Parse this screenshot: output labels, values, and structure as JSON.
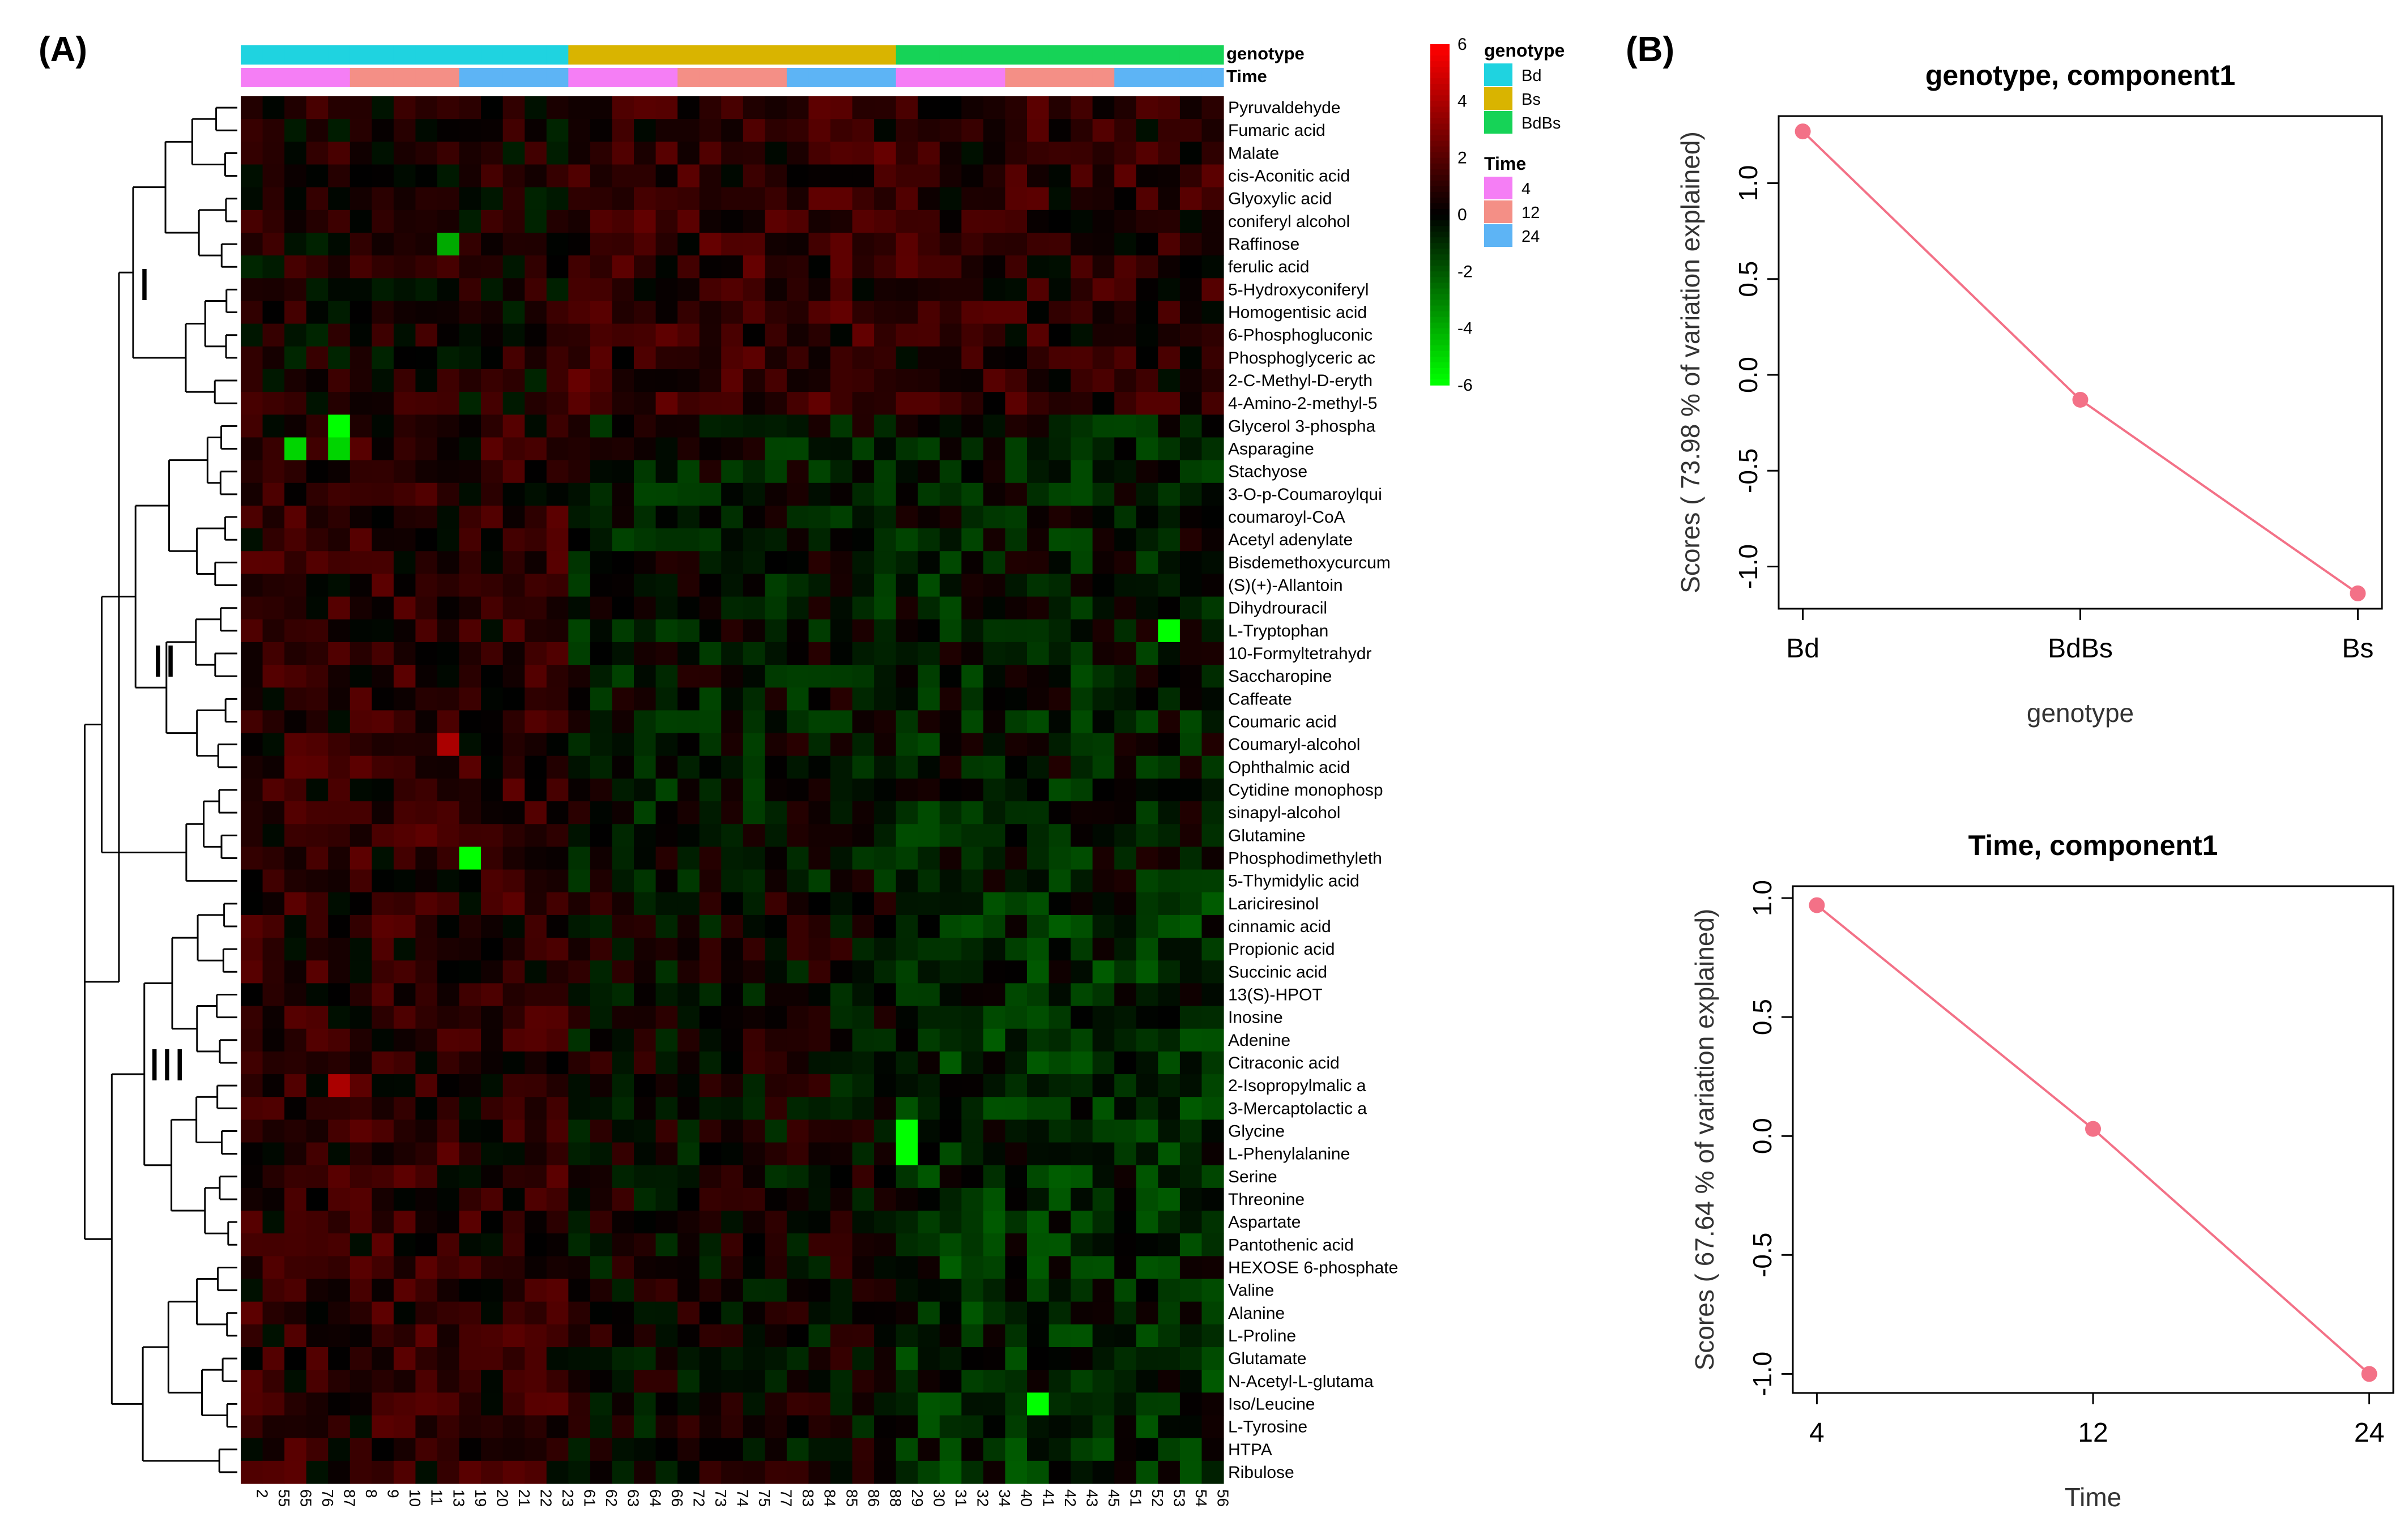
{
  "figure": {
    "panel_a_label": "(A)",
    "panel_b_label": "(B)"
  },
  "colors": {
    "heat_high": "#ff0000",
    "heat_mid": "#000000",
    "heat_low": "#00ff00",
    "genotype_Bd": "#1fd3e0",
    "genotype_Bs": "#d9b400",
    "genotype_BdBs": "#16d357",
    "time_4": "#f57ef5",
    "time_12": "#f48f86",
    "time_24": "#5db4f5",
    "line_color": "#f37187"
  },
  "chart_data": [
    {
      "type": "heatmap",
      "annotation_row_labels": [
        "genotype",
        "Time"
      ],
      "column_labels": [
        "2",
        "55",
        "65",
        "76",
        "87",
        "8",
        "9",
        "10",
        "11",
        "13",
        "19",
        "20",
        "21",
        "22",
        "23",
        "61",
        "62",
        "63",
        "64",
        "66",
        "72",
        "73",
        "74",
        "75",
        "77",
        "83",
        "84",
        "85",
        "86",
        "88",
        "29",
        "30",
        "31",
        "32",
        "34",
        "40",
        "41",
        "42",
        "43",
        "45",
        "51",
        "52",
        "53",
        "54",
        "56"
      ],
      "column_genotype": [
        "Bd",
        "Bd",
        "Bd",
        "Bd",
        "Bd",
        "Bd",
        "Bd",
        "Bd",
        "Bd",
        "Bd",
        "Bd",
        "Bd",
        "Bd",
        "Bd",
        "Bd",
        "Bs",
        "Bs",
        "Bs",
        "Bs",
        "Bs",
        "Bs",
        "Bs",
        "Bs",
        "Bs",
        "Bs",
        "Bs",
        "Bs",
        "Bs",
        "Bs",
        "Bs",
        "BdBs",
        "BdBs",
        "BdBs",
        "BdBs",
        "BdBs",
        "BdBs",
        "BdBs",
        "BdBs",
        "BdBs",
        "BdBs",
        "BdBs",
        "BdBs",
        "BdBs",
        "BdBs",
        "BdBs"
      ],
      "column_time": [
        "4",
        "4",
        "4",
        "4",
        "4",
        "12",
        "12",
        "12",
        "12",
        "12",
        "24",
        "24",
        "24",
        "24",
        "24",
        "4",
        "4",
        "4",
        "4",
        "4",
        "12",
        "12",
        "12",
        "12",
        "12",
        "24",
        "24",
        "24",
        "24",
        "24",
        "4",
        "4",
        "4",
        "4",
        "4",
        "12",
        "12",
        "12",
        "12",
        "12",
        "24",
        "24",
        "24",
        "24",
        "24"
      ],
      "row_labels": [
        "Pyruvaldehyde",
        "Fumaric acid",
        "Malate",
        "cis-Aconitic acid",
        "Glyoxylic acid",
        "coniferyl alcohol",
        "Raffinose",
        "ferulic acid",
        "5-Hydroxyconiferyl",
        "Homogentisic acid",
        "6-Phosphogluconic",
        "Phosphoglyceric ac",
        "2-C-Methyl-D-eryth",
        "4-Amino-2-methyl-5",
        "Glycerol 3-phospha",
        "Asparagine",
        "Stachyose",
        "3-O-p-Coumaroylqui",
        "coumaroyl-CoA",
        "Acetyl adenylate",
        "Bisdemethoxycurcum",
        "(S)(+)-Allantoin",
        "Dihydrouracil",
        "L-Tryptophan",
        "10-Formyltetrahydr",
        "Saccharopine",
        "Caffeate",
        "Coumaric acid",
        "Coumaryl-alcohol",
        "Ophthalmic acid",
        "Cytidine monophosp",
        "sinapyl-alcohol",
        "Glutamine",
        "Phosphodimethyleth",
        "5-Thymidylic acid",
        "Lariciresinol",
        "cinnamic acid",
        "Propionic acid",
        "Succinic acid",
        "13(S)-HPOT",
        "Inosine",
        "Adenine",
        "Citraconic acid",
        "2-Isopropylmalic a",
        "3-Mercaptolactic a",
        "Glycine",
        "L-Phenylalanine",
        "Serine",
        "Threonine",
        "Aspartate",
        "Pantothenic acid",
        "HEXOSE 6-phosphate",
        "Valine",
        "Alanine",
        "L-Proline",
        "Glutamate",
        "N-Acetyl-L-glutama",
        "Iso/Leucine",
        "L-Tyrosine",
        "HTPA",
        "Ribulose"
      ],
      "cluster_labels": [
        "I",
        "II",
        "III"
      ],
      "value_range": [
        -6,
        6
      ],
      "colorbar_ticks": [
        "6",
        "4",
        "2",
        "0",
        "-2",
        "-4",
        "-6"
      ],
      "legend": {
        "genotype_title": "genotype",
        "genotype_items": [
          "Bd",
          "Bs",
          "BdBs"
        ],
        "time_title": "Time",
        "time_items": [
          "4",
          "12",
          "24"
        ]
      },
      "highlights": [
        {
          "row": "Glycerol 3-phospha",
          "col": "87",
          "value": -6
        },
        {
          "row": "Asparagine",
          "col": "65",
          "value": -5
        },
        {
          "row": "Asparagine",
          "col": "87",
          "value": -5
        },
        {
          "row": "L-Tryptophan",
          "col": "53",
          "value": -6
        },
        {
          "row": "Coumaryl-alcohol",
          "col": "13",
          "value": 4
        },
        {
          "row": "Phosphodimethyleth",
          "col": "19",
          "value": -6
        },
        {
          "row": "Glycine",
          "col": "29",
          "value": -6
        },
        {
          "row": "L-Phenylalanine",
          "col": "29",
          "value": -6
        },
        {
          "row": "Iso/Leucine",
          "col": "41",
          "value": -6
        },
        {
          "row": "2-Isopropylmalic a",
          "col": "87",
          "value": 4
        },
        {
          "row": "Raffinose",
          "col": "13",
          "value": -4
        }
      ]
    },
    {
      "type": "line",
      "title": "genotype, component1",
      "xlabel": "genotype",
      "ylabel": "Scores ( 73.98 % of variation explained)",
      "categories": [
        "Bd",
        "BdBs",
        "Bs"
      ],
      "values": [
        1.27,
        -0.13,
        -1.14
      ],
      "yticks": [
        1.0,
        0.5,
        0.0,
        -0.5,
        -1.0
      ],
      "ytick_labels": [
        "1.0",
        "0.5",
        "0.0",
        "-0.5",
        "-1.0"
      ],
      "ylim": [
        -1.22,
        1.35
      ]
    },
    {
      "type": "line",
      "title": "Time, component1",
      "xlabel": "Time",
      "ylabel": "Scores ( 67.64 % of variation explained)",
      "categories": [
        "4",
        "12",
        "24"
      ],
      "values": [
        0.97,
        0.03,
        -1.0
      ],
      "yticks": [
        1.0,
        0.5,
        0.0,
        -0.5,
        -1.0
      ],
      "ytick_labels": [
        "1.0",
        "0.5",
        "0.0",
        "-0.5",
        "-1.0"
      ],
      "ylim": [
        -1.08,
        1.05
      ]
    }
  ]
}
